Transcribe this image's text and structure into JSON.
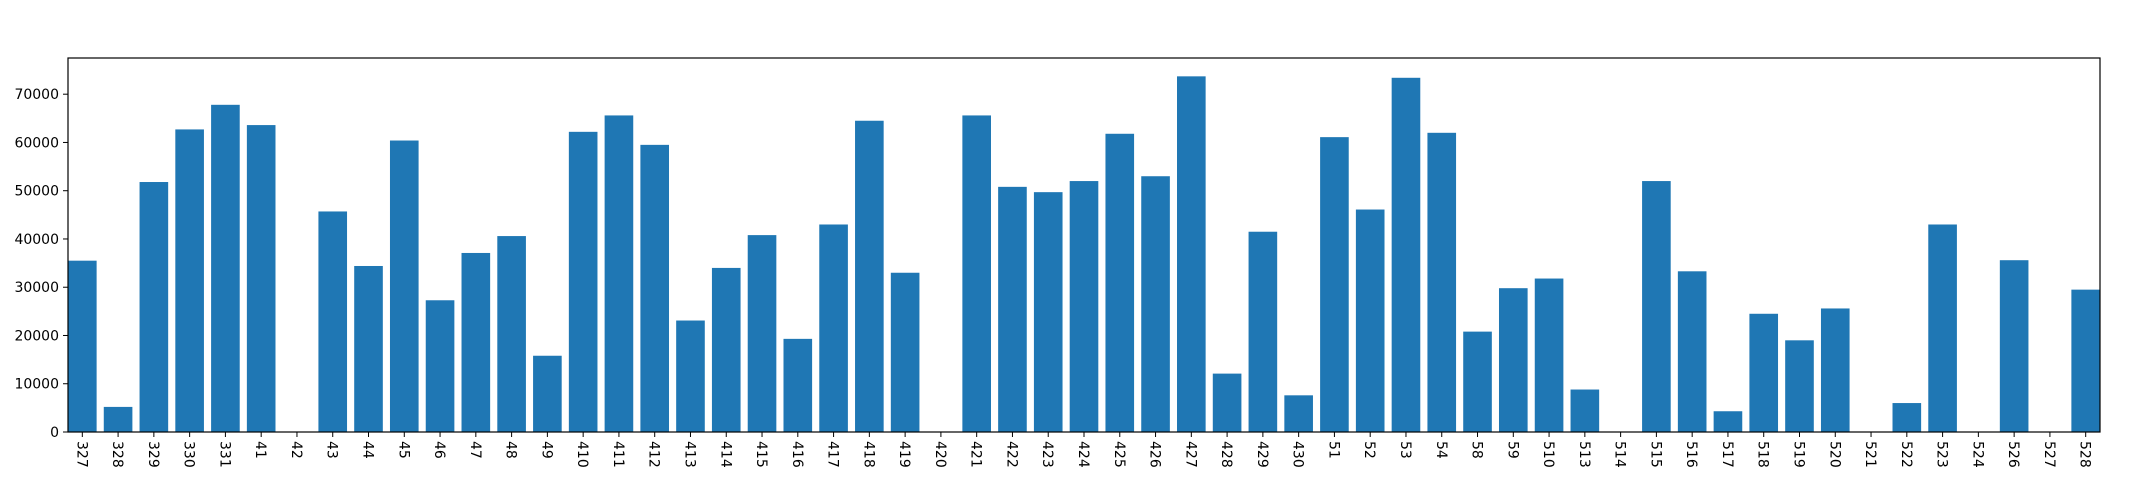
{
  "chart_data": {
    "type": "bar",
    "title": "",
    "xlabel": "",
    "ylabel": "",
    "ylim": [
      0,
      77500
    ],
    "yticks": [
      0,
      10000,
      20000,
      30000,
      40000,
      50000,
      60000,
      70000
    ],
    "ytick_labels": [
      "0",
      "10000",
      "20000",
      "30000",
      "40000",
      "50000",
      "60000",
      "70000"
    ],
    "grid": false,
    "legend": "none",
    "bar_color": "#1f77b4",
    "categories": [
      "327",
      "328",
      "329",
      "330",
      "331",
      "41",
      "42",
      "43",
      "44",
      "45",
      "46",
      "47",
      "48",
      "49",
      "410",
      "411",
      "412",
      "413",
      "414",
      "415",
      "416",
      "417",
      "418",
      "419",
      "420",
      "421",
      "422",
      "423",
      "424",
      "425",
      "426",
      "427",
      "428",
      "429",
      "430",
      "51",
      "52",
      "53",
      "54",
      "58",
      "59",
      "510",
      "513",
      "514",
      "515",
      "516",
      "517",
      "518",
      "519",
      "520",
      "521",
      "522",
      "523",
      "524",
      "526",
      "527",
      "528"
    ],
    "values": [
      35500,
      5200,
      51800,
      62700,
      67800,
      63600,
      0,
      45700,
      34400,
      60400,
      27300,
      37100,
      40600,
      15800,
      62200,
      65600,
      59500,
      23100,
      34000,
      40800,
      19300,
      43000,
      64500,
      33000,
      0,
      65600,
      50800,
      49700,
      52000,
      61800,
      53000,
      73700,
      12100,
      41500,
      7600,
      61100,
      46100,
      73400,
      62000,
      20800,
      29800,
      31800,
      8800,
      0,
      52000,
      33300,
      4300,
      24500,
      19000,
      25600,
      0,
      6000,
      43000,
      0,
      35600,
      0,
      29500
    ]
  }
}
